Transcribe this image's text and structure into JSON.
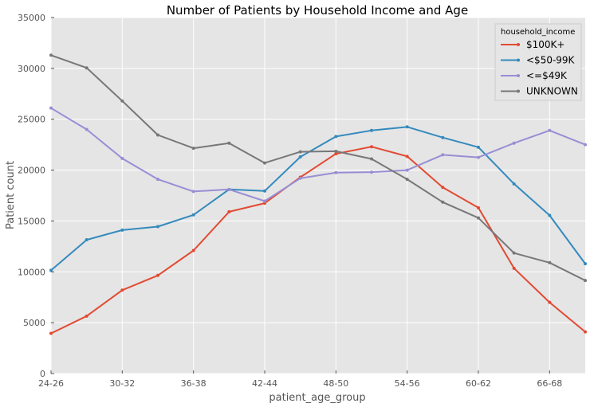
{
  "chart_data": {
    "type": "line",
    "title": "Number of Patients by Household Income and Age",
    "xlabel": "patient_age_group",
    "ylabel": "Patient count",
    "ylim": [
      0,
      35000
    ],
    "y_ticks": [
      0,
      5000,
      10000,
      15000,
      20000,
      25000,
      30000,
      35000
    ],
    "x_tick_labels": [
      "24-26",
      "30-32",
      "36-38",
      "42-44",
      "48-50",
      "54-56",
      "60-62",
      "66-68"
    ],
    "x_tick_positions": [
      0,
      2,
      4,
      6,
      8,
      10,
      12,
      14
    ],
    "xlim": [
      0,
      15
    ],
    "grid": true,
    "legend_title": "household_income",
    "legend_position": "top-right",
    "series": [
      {
        "name": "$100K+",
        "color": "#E24A33",
        "values": [
          3950,
          5650,
          8200,
          9650,
          12100,
          15900,
          16750,
          19300,
          21600,
          22300,
          21350,
          18300,
          16300,
          10350,
          7000,
          4100
        ]
      },
      {
        "name": "<$50-99K",
        "color": "#348ABD",
        "values": [
          10150,
          13150,
          14100,
          14450,
          15600,
          18100,
          17950,
          21300,
          23300,
          23900,
          24250,
          23200,
          22250,
          18650,
          15550,
          10800
        ]
      },
      {
        "name": "<=$49K",
        "color": "#988ED5",
        "values": [
          26100,
          24000,
          21150,
          19100,
          17900,
          18100,
          16950,
          19200,
          19750,
          19800,
          20000,
          21500,
          21250,
          22650,
          23900,
          22500
        ]
      },
      {
        "name": "UNKNOWN",
        "color": "#777777",
        "values": [
          31300,
          30050,
          26800,
          23450,
          22150,
          22650,
          20700,
          21800,
          21850,
          21100,
          19100,
          16850,
          15300,
          11850,
          10900,
          9150
        ]
      }
    ]
  }
}
